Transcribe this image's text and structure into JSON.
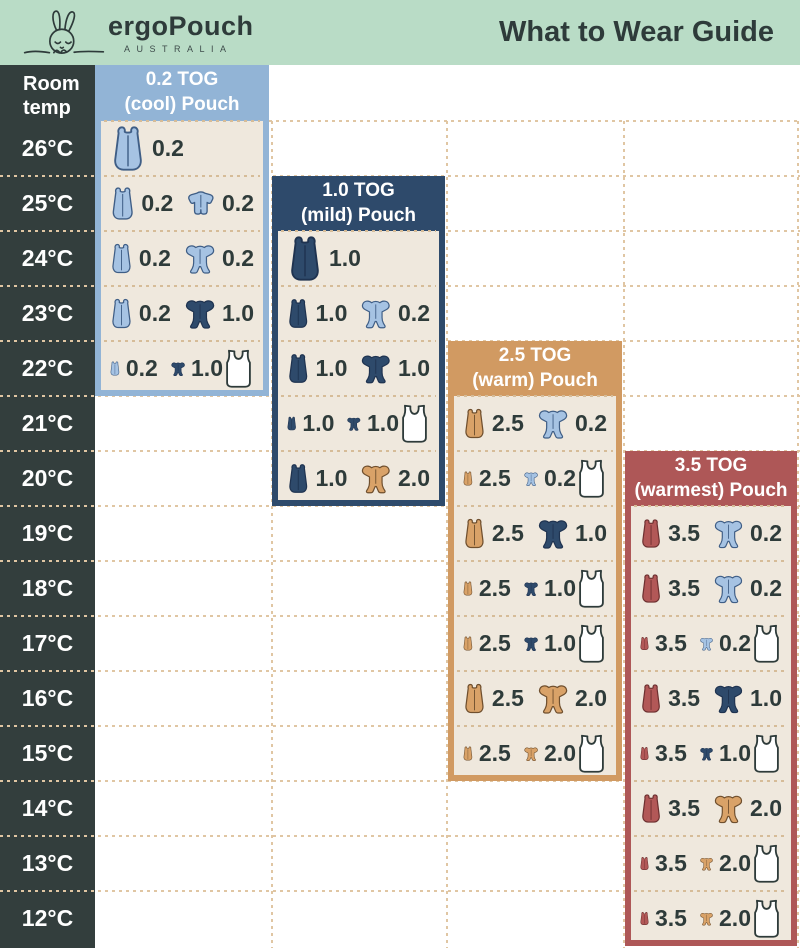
{
  "banner": {
    "brand_name": "ergoPouch",
    "brand_sub": "AUSTRALIA",
    "title": "What to Wear Guide"
  },
  "colors": {
    "banner_bg": "#b9dcc6",
    "temp_column_bg": "#333e3d",
    "panel_body": "#efe8dd",
    "text_dark": "#2e3b3a",
    "grid_dash": "#e0c6a3"
  },
  "variants": {
    "lightblue": {
      "fill": "#a6c3e3",
      "stroke": "#3f5e86"
    },
    "navy": {
      "fill": "#2e4a6b",
      "stroke": "#1f3350"
    },
    "tan": {
      "fill": "#d9a268",
      "stroke": "#6f4f2e"
    },
    "red": {
      "fill": "#b25857",
      "stroke": "#6d3030"
    },
    "white": {
      "fill": "#ffffff",
      "stroke": "#2e3b3a"
    }
  },
  "chart_data": {
    "type": "table",
    "title": "What to Wear Guide",
    "row_header": "Room temp",
    "temps": [
      "26°C",
      "25°C",
      "24°C",
      "23°C",
      "22°C",
      "21°C",
      "20°C",
      "19°C",
      "18°C",
      "17°C",
      "16°C",
      "15°C",
      "14°C",
      "13°C",
      "12°C"
    ],
    "panels": [
      {
        "id": "tog-0-2",
        "title_lines": [
          "0.2 TOG",
          "(cool) Pouch"
        ],
        "color": "#92b4d6",
        "col": 0,
        "header_row": -1,
        "rows": [
          {
            "temp": "26°C",
            "items": [
              {
                "type": "pouch",
                "variant": "lightblue",
                "tog": "0.2"
              }
            ]
          },
          {
            "temp": "25°C",
            "items": [
              {
                "type": "pouch",
                "variant": "lightblue",
                "tog": "0.2"
              },
              {
                "type": "romper",
                "variant": "lightblue",
                "tog": "0.2"
              }
            ]
          },
          {
            "temp": "24°C",
            "items": [
              {
                "type": "pouch",
                "variant": "lightblue",
                "tog": "0.2"
              },
              {
                "type": "onesie",
                "variant": "lightblue",
                "tog": "0.2"
              }
            ]
          },
          {
            "temp": "23°C",
            "items": [
              {
                "type": "pouch",
                "variant": "lightblue",
                "tog": "0.2"
              },
              {
                "type": "onesie",
                "variant": "navy",
                "tog": "1.0"
              }
            ]
          },
          {
            "temp": "22°C",
            "items": [
              {
                "type": "pouch",
                "variant": "lightblue",
                "tog": "0.2"
              },
              {
                "type": "onesie",
                "variant": "navy",
                "tog": "1.0"
              },
              {
                "type": "singlet",
                "variant": "white"
              }
            ]
          }
        ]
      },
      {
        "id": "tog-1-0",
        "title_lines": [
          "1.0 TOG",
          "(mild) Pouch"
        ],
        "color": "#2e4a6b",
        "col": 1,
        "header_row": 1,
        "rows": [
          {
            "temp": "24°C",
            "items": [
              {
                "type": "pouch",
                "variant": "navy",
                "tog": "1.0"
              }
            ]
          },
          {
            "temp": "23°C",
            "items": [
              {
                "type": "pouch",
                "variant": "navy",
                "tog": "1.0"
              },
              {
                "type": "onesie",
                "variant": "lightblue",
                "tog": "0.2"
              }
            ]
          },
          {
            "temp": "22°C",
            "items": [
              {
                "type": "pouch",
                "variant": "navy",
                "tog": "1.0"
              },
              {
                "type": "onesie",
                "variant": "navy",
                "tog": "1.0"
              }
            ]
          },
          {
            "temp": "21°C",
            "items": [
              {
                "type": "pouch",
                "variant": "navy",
                "tog": "1.0"
              },
              {
                "type": "onesie",
                "variant": "navy",
                "tog": "1.0"
              },
              {
                "type": "singlet",
                "variant": "white"
              }
            ]
          },
          {
            "temp": "20°C",
            "items": [
              {
                "type": "pouch",
                "variant": "navy",
                "tog": "1.0"
              },
              {
                "type": "onesie",
                "variant": "tan",
                "tog": "2.0"
              }
            ]
          }
        ]
      },
      {
        "id": "tog-2-5",
        "title_lines": [
          "2.5 TOG",
          "(warm) Pouch"
        ],
        "color": "#d19a62",
        "col": 2,
        "header_row": 4,
        "rows": [
          {
            "temp": "21°C",
            "items": [
              {
                "type": "pouch",
                "variant": "tan",
                "tog": "2.5"
              },
              {
                "type": "onesie",
                "variant": "lightblue",
                "tog": "0.2"
              }
            ]
          },
          {
            "temp": "20°C",
            "items": [
              {
                "type": "pouch",
                "variant": "tan",
                "tog": "2.5"
              },
              {
                "type": "onesie",
                "variant": "lightblue",
                "tog": "0.2"
              },
              {
                "type": "singlet",
                "variant": "white"
              }
            ]
          },
          {
            "temp": "19°C",
            "items": [
              {
                "type": "pouch",
                "variant": "tan",
                "tog": "2.5"
              },
              {
                "type": "onesie",
                "variant": "navy",
                "tog": "1.0"
              }
            ]
          },
          {
            "temp": "18°C",
            "items": [
              {
                "type": "pouch",
                "variant": "tan",
                "tog": "2.5"
              },
              {
                "type": "onesie",
                "variant": "navy",
                "tog": "1.0"
              },
              {
                "type": "singlet",
                "variant": "white"
              }
            ]
          },
          {
            "temp": "17°C",
            "items": [
              {
                "type": "pouch",
                "variant": "tan",
                "tog": "2.5"
              },
              {
                "type": "onesie",
                "variant": "navy",
                "tog": "1.0"
              },
              {
                "type": "singlet",
                "variant": "white"
              }
            ]
          },
          {
            "temp": "16°C",
            "items": [
              {
                "type": "pouch",
                "variant": "tan",
                "tog": "2.5"
              },
              {
                "type": "onesie",
                "variant": "tan",
                "tog": "2.0"
              }
            ]
          },
          {
            "temp": "15°C",
            "items": [
              {
                "type": "pouch",
                "variant": "tan",
                "tog": "2.5"
              },
              {
                "type": "onesie",
                "variant": "tan",
                "tog": "2.0"
              },
              {
                "type": "singlet",
                "variant": "white"
              }
            ]
          }
        ]
      },
      {
        "id": "tog-3-5",
        "title_lines": [
          "3.5 TOG",
          "(warmest) Pouch"
        ],
        "color": "#ae5757",
        "col": 3,
        "header_row": 6,
        "rows": [
          {
            "temp": "19°C",
            "items": [
              {
                "type": "pouch",
                "variant": "red",
                "tog": "3.5"
              },
              {
                "type": "onesie",
                "variant": "lightblue",
                "tog": "0.2"
              }
            ]
          },
          {
            "temp": "18°C",
            "items": [
              {
                "type": "pouch",
                "variant": "red",
                "tog": "3.5"
              },
              {
                "type": "onesie",
                "variant": "lightblue",
                "tog": "0.2"
              }
            ]
          },
          {
            "temp": "17°C",
            "items": [
              {
                "type": "pouch",
                "variant": "red",
                "tog": "3.5"
              },
              {
                "type": "onesie",
                "variant": "lightblue",
                "tog": "0.2"
              },
              {
                "type": "singlet",
                "variant": "white"
              }
            ]
          },
          {
            "temp": "16°C",
            "items": [
              {
                "type": "pouch",
                "variant": "red",
                "tog": "3.5"
              },
              {
                "type": "onesie",
                "variant": "navy",
                "tog": "1.0"
              }
            ]
          },
          {
            "temp": "15°C",
            "items": [
              {
                "type": "pouch",
                "variant": "red",
                "tog": "3.5"
              },
              {
                "type": "onesie",
                "variant": "navy",
                "tog": "1.0"
              },
              {
                "type": "singlet",
                "variant": "white"
              }
            ]
          },
          {
            "temp": "14°C",
            "items": [
              {
                "type": "pouch",
                "variant": "red",
                "tog": "3.5"
              },
              {
                "type": "onesie",
                "variant": "tan",
                "tog": "2.0"
              }
            ]
          },
          {
            "temp": "13°C",
            "items": [
              {
                "type": "pouch",
                "variant": "red",
                "tog": "3.5"
              },
              {
                "type": "onesie",
                "variant": "tan",
                "tog": "2.0"
              },
              {
                "type": "singlet",
                "variant": "white"
              }
            ]
          },
          {
            "temp": "12°C",
            "items": [
              {
                "type": "pouch",
                "variant": "red",
                "tog": "3.5"
              },
              {
                "type": "onesie",
                "variant": "tan",
                "tog": "2.0"
              },
              {
                "type": "singlet",
                "variant": "white"
              }
            ]
          }
        ]
      }
    ]
  }
}
